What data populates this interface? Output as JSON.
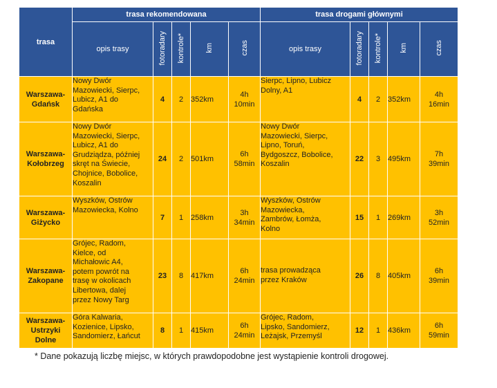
{
  "header": {
    "route": "trasa",
    "recommended": "trasa rekomendowana",
    "main_roads": "trasa drogami głównymi",
    "description": "opis trasy",
    "speed_cameras": "fotoradary",
    "checks": "kontrole*",
    "km": "km",
    "time": "czas"
  },
  "rows": [
    {
      "name": [
        "Warszawa-",
        "Gdańsk"
      ],
      "rec_desc": [
        "Nowy Dwór",
        "Mazowiecki, Sierpc,",
        "Lubicz, A1 do",
        "Gdańska"
      ],
      "rec_cameras": "4",
      "rec_checks": "2",
      "rec_km": "352km",
      "rec_time": [
        "4h",
        "10min"
      ],
      "main_desc": [
        "Sierpc, Lipno, Lubicz",
        "Dolny, A1"
      ],
      "main_cameras": "4",
      "main_checks": "2",
      "main_km": "352km",
      "main_time": [
        "4h",
        "16min"
      ]
    },
    {
      "name": [
        "Warszawa-",
        "Kołobrzeg"
      ],
      "rec_desc": [
        "Nowy Dwór",
        "Mazowiecki, Sierpc,",
        "Lubicz, A1 do",
        "Grudziądza, później",
        "skręt na Świecie,",
        "Chojnice, Bobolice,",
        "Koszalin"
      ],
      "rec_cameras": "24",
      "rec_checks": "2",
      "rec_km": "501km",
      "rec_time": [
        "6h",
        "58min"
      ],
      "main_desc": [
        "Nowy Dwór",
        "Mazowiecki, Sierpc,",
        "Lipno, Toruń,",
        "Bydgoszcz, Bobolice,",
        "Koszalin"
      ],
      "main_cameras": "22",
      "main_checks": "3",
      "main_km": "495km",
      "main_time": [
        "7h",
        "39min"
      ]
    },
    {
      "name": [
        "Warszawa-",
        "Giżycko"
      ],
      "rec_desc": [
        "Wyszków, Ostrów",
        "Mazowiecka, Kolno"
      ],
      "rec_cameras": "7",
      "rec_checks": "1",
      "rec_km": "258km",
      "rec_time": [
        "3h",
        "34min"
      ],
      "main_desc": [
        "Wyszków, Ostrów",
        "Mazowiecka,",
        "Zambrów, Łomża,",
        "Kolno"
      ],
      "main_cameras": "15",
      "main_checks": "1",
      "main_km": "269km",
      "main_time": [
        "3h",
        "52min"
      ]
    },
    {
      "name": [
        "Warszawa-",
        "Zakopane"
      ],
      "rec_desc": [
        "Grójec, Radom,",
        "Kielce, od",
        "Michałowic A4,",
        "potem powrót na",
        "trasę w okolicach",
        "Libertowa, dalej",
        "przez Nowy Targ"
      ],
      "rec_cameras": "23",
      "rec_checks": "8",
      "rec_km": "417km",
      "rec_time": [
        "6h",
        "24min"
      ],
      "main_desc": [
        "trasa prowadząca",
        "przez Kraków"
      ],
      "main_cameras": "26",
      "main_checks": "8",
      "main_km": "405km",
      "main_time": [
        "6h",
        "39min"
      ]
    },
    {
      "name": [
        "Ustrzyki",
        "Dolne"
      ],
      "name_top": "Warszawa-",
      "rec_desc": [
        "Góra Kalwaria,",
        "Kozienice, Lipsko,",
        "Sandomierz, Łańcut"
      ],
      "rec_cameras": "8",
      "rec_checks": "1",
      "rec_km": "415km",
      "rec_time": [
        "6h",
        "24min"
      ],
      "main_desc": [
        "Grójec, Radom,",
        "Lipsko, Sandomierz,",
        "Leżajsk, Przemyśl"
      ],
      "main_cameras": "12",
      "main_checks": "1",
      "main_km": "436km",
      "main_time": [
        "6h",
        "59min"
      ]
    }
  ],
  "footnote": "* Dane pokazują liczbę miejsc, w których prawdopodobne jest wystąpienie kontroli drogowej."
}
